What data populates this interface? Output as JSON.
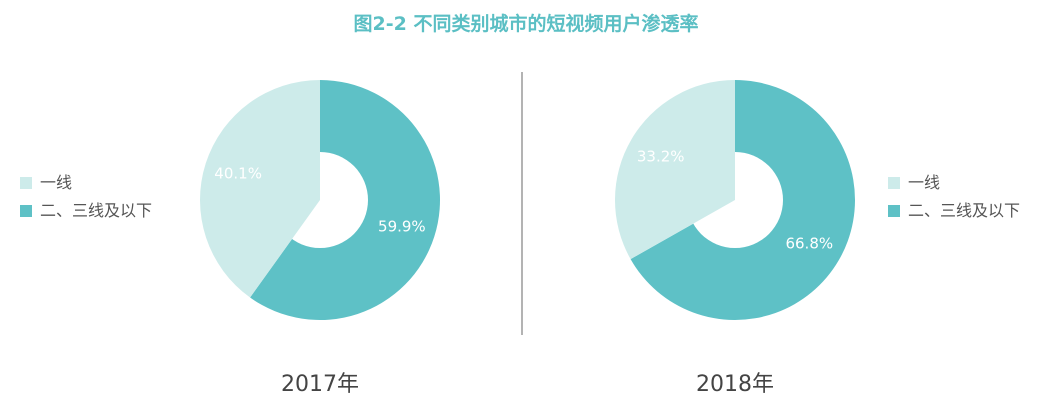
{
  "title": "图2-2  不同类别城市的短视频用户渗透率",
  "colors": {
    "title": "#5bbfc4",
    "tier1": "#cdebea",
    "tier23": "#5ec1c6",
    "divider": "#9a9a9a",
    "hole": "#ffffff"
  },
  "chart_data": [
    {
      "type": "pie",
      "title": "2017年",
      "categories": [
        "一线",
        "二、三线及以下"
      ],
      "values": [
        40.1,
        59.9
      ],
      "value_labels": [
        "40.1%",
        "59.9%"
      ],
      "legend": {
        "placement": "left",
        "entries": [
          "一线",
          "二、三线及以下"
        ]
      },
      "donut": true
    },
    {
      "type": "pie",
      "title": "2018年",
      "categories": [
        "一线",
        "二、三线及以下"
      ],
      "values": [
        33.2,
        66.8
      ],
      "value_labels": [
        "33.2%",
        "66.8%"
      ],
      "legend": {
        "placement": "right",
        "entries": [
          "一线",
          "二、三线及以下"
        ]
      },
      "donut": true
    }
  ]
}
